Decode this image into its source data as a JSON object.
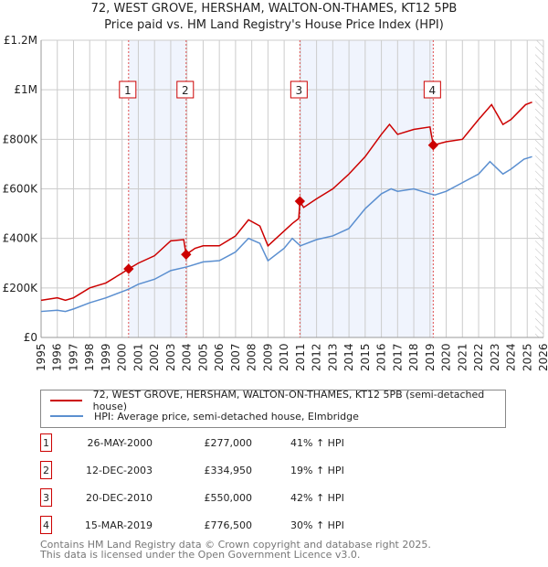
{
  "chart_data": {
    "type": "line",
    "title": "72, WEST GROVE, HERSHAM, WALTON-ON-THAMES, KT12 5PB",
    "subtitle": "Price paid vs. HM Land Registry's House Price Index (HPI)",
    "xlim": [
      1995,
      2026
    ],
    "ylim": [
      0,
      1200000
    ],
    "x_ticks": [
      "1995",
      "1996",
      "1997",
      "1998",
      "1999",
      "2000",
      "2001",
      "2002",
      "2003",
      "2004",
      "2005",
      "2006",
      "2007",
      "2008",
      "2009",
      "2010",
      "2011",
      "2012",
      "2013",
      "2014",
      "2015",
      "2016",
      "2017",
      "2018",
      "2019",
      "2020",
      "2021",
      "2022",
      "2023",
      "2024",
      "2025",
      "2026"
    ],
    "y_ticks": [
      {
        "v": 0,
        "label": "£0"
      },
      {
        "v": 200000,
        "label": "£200K"
      },
      {
        "v": 400000,
        "label": "£400K"
      },
      {
        "v": 600000,
        "label": "£600K"
      },
      {
        "v": 800000,
        "label": "£800K"
      },
      {
        "v": 1000000,
        "label": "£1M"
      },
      {
        "v": 1200000,
        "label": "£1.2M"
      }
    ],
    "grid": true,
    "series": [
      {
        "name": "72, WEST GROVE, HERSHAM, WALTON-ON-THAMES, KT12 5PB (semi-detached house)",
        "color": "#cc0000",
        "points": [
          [
            1995,
            150000
          ],
          [
            1996,
            160000
          ],
          [
            1996.5,
            150000
          ],
          [
            1997,
            160000
          ],
          [
            1998,
            200000
          ],
          [
            1999,
            220000
          ],
          [
            2000,
            260000
          ],
          [
            2000.4,
            277000
          ],
          [
            2001,
            300000
          ],
          [
            2002,
            330000
          ],
          [
            2003,
            390000
          ],
          [
            2003.8,
            395000
          ],
          [
            2003.95,
            334950
          ],
          [
            2004.5,
            360000
          ],
          [
            2005,
            370000
          ],
          [
            2006,
            370000
          ],
          [
            2007,
            410000
          ],
          [
            2007.8,
            475000
          ],
          [
            2008.5,
            450000
          ],
          [
            2009,
            370000
          ],
          [
            2010,
            430000
          ],
          [
            2010.5,
            460000
          ],
          [
            2010.9,
            480000
          ],
          [
            2010.97,
            550000
          ],
          [
            2011.2,
            525000
          ],
          [
            2012,
            560000
          ],
          [
            2013,
            600000
          ],
          [
            2014,
            660000
          ],
          [
            2015,
            730000
          ],
          [
            2016,
            820000
          ],
          [
            2016.5,
            860000
          ],
          [
            2017,
            820000
          ],
          [
            2018,
            840000
          ],
          [
            2019,
            850000
          ],
          [
            2019.2,
            776500
          ],
          [
            2020,
            790000
          ],
          [
            2021,
            800000
          ],
          [
            2022,
            880000
          ],
          [
            2022.8,
            940000
          ],
          [
            2023.5,
            860000
          ],
          [
            2024,
            880000
          ],
          [
            2024.9,
            940000
          ],
          [
            2025.3,
            950000
          ]
        ]
      },
      {
        "name": "HPI: Average price, semi-detached house, Elmbridge",
        "color": "#5b8fd0",
        "points": [
          [
            1995,
            105000
          ],
          [
            1996,
            110000
          ],
          [
            1996.5,
            105000
          ],
          [
            1997,
            115000
          ],
          [
            1998,
            140000
          ],
          [
            1999,
            160000
          ],
          [
            2000,
            185000
          ],
          [
            2000.4,
            195000
          ],
          [
            2001,
            215000
          ],
          [
            2002,
            235000
          ],
          [
            2003,
            270000
          ],
          [
            2004,
            285000
          ],
          [
            2005,
            305000
          ],
          [
            2006,
            310000
          ],
          [
            2007,
            345000
          ],
          [
            2007.8,
            400000
          ],
          [
            2008.5,
            380000
          ],
          [
            2009,
            310000
          ],
          [
            2010,
            360000
          ],
          [
            2010.5,
            400000
          ],
          [
            2011,
            370000
          ],
          [
            2012,
            395000
          ],
          [
            2013,
            410000
          ],
          [
            2014,
            440000
          ],
          [
            2015,
            520000
          ],
          [
            2016,
            580000
          ],
          [
            2016.6,
            600000
          ],
          [
            2017,
            590000
          ],
          [
            2018,
            600000
          ],
          [
            2019,
            580000
          ],
          [
            2019.3,
            575000
          ],
          [
            2020,
            590000
          ],
          [
            2021,
            625000
          ],
          [
            2022,
            660000
          ],
          [
            2022.7,
            710000
          ],
          [
            2023.5,
            660000
          ],
          [
            2024,
            680000
          ],
          [
            2024.8,
            720000
          ],
          [
            2025.3,
            730000
          ]
        ]
      }
    ],
    "sales": [
      {
        "n": "1",
        "x": 2000.4,
        "price": 277000,
        "date": "26-MAY-2000",
        "price_label": "£277,000",
        "hpi": "41% ↑ HPI"
      },
      {
        "n": "2",
        "x": 2003.95,
        "price": 334950,
        "date": "12-DEC-2003",
        "price_label": "£334,950",
        "hpi": "19% ↑ HPI"
      },
      {
        "n": "3",
        "x": 2010.97,
        "price": 550000,
        "date": "20-DEC-2010",
        "price_label": "£550,000",
        "hpi": "42% ↑ HPI"
      },
      {
        "n": "4",
        "x": 2019.2,
        "price": 776500,
        "date": "15-MAR-2019",
        "price_label": "£776,500",
        "hpi": "30% ↑ HPI"
      }
    ],
    "shaded_ranges": [
      [
        2000.4,
        2003.95
      ],
      [
        2010.97,
        2019.2
      ]
    ],
    "forecast_start": 2025.5
  },
  "footer": [
    "Contains HM Land Registry data © Crown copyright and database right 2025.",
    "This data is licensed under the Open Government Licence v3.0."
  ]
}
